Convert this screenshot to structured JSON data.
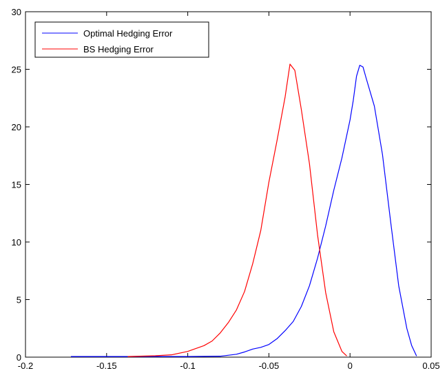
{
  "chart_data": {
    "type": "line",
    "title": "",
    "xlabel": "",
    "ylabel": "",
    "xlim": [
      -0.2,
      0.05
    ],
    "ylim": [
      0,
      30
    ],
    "x_ticks": [
      -0.2,
      -0.15,
      -0.1,
      -0.05,
      0,
      0.05
    ],
    "x_tick_labels": [
      "-0.2",
      "-0.15",
      "-0.1",
      "-0.05",
      "0",
      "0.05"
    ],
    "y_ticks": [
      0,
      5,
      10,
      15,
      20,
      25,
      30
    ],
    "y_tick_labels": [
      "0",
      "5",
      "10",
      "15",
      "20",
      "25",
      "30"
    ],
    "grid": false,
    "legend_position": "top-left",
    "series": [
      {
        "name": "Optimal Hedging Error",
        "color": "#0000ff",
        "points": [
          [
            -0.172,
            0.05
          ],
          [
            -0.14,
            0.05
          ],
          [
            -0.12,
            0.05
          ],
          [
            -0.1,
            0.05
          ],
          [
            -0.08,
            0.08
          ],
          [
            -0.07,
            0.25
          ],
          [
            -0.065,
            0.45
          ],
          [
            -0.06,
            0.7
          ],
          [
            -0.055,
            0.85
          ],
          [
            -0.05,
            1.1
          ],
          [
            -0.045,
            1.6
          ],
          [
            -0.04,
            2.3
          ],
          [
            -0.035,
            3.1
          ],
          [
            -0.03,
            4.4
          ],
          [
            -0.025,
            6.2
          ],
          [
            -0.02,
            8.6
          ],
          [
            -0.015,
            11.4
          ],
          [
            -0.01,
            14.5
          ],
          [
            -0.005,
            17.3
          ],
          [
            0,
            20.6
          ],
          [
            0.002,
            22.3
          ],
          [
            0.004,
            24.4
          ],
          [
            0.006,
            25.35
          ],
          [
            0.008,
            25.2
          ],
          [
            0.01,
            24.2
          ],
          [
            0.015,
            21.8
          ],
          [
            0.02,
            17.6
          ],
          [
            0.025,
            11.8
          ],
          [
            0.03,
            6.2
          ],
          [
            0.035,
            2.5
          ],
          [
            0.038,
            1.0
          ],
          [
            0.041,
            0.1
          ]
        ]
      },
      {
        "name": "BS Hedging Error",
        "color": "#ff0000",
        "points": [
          [
            -0.137,
            0.05
          ],
          [
            -0.12,
            0.12
          ],
          [
            -0.11,
            0.2
          ],
          [
            -0.1,
            0.5
          ],
          [
            -0.09,
            1.0
          ],
          [
            -0.085,
            1.4
          ],
          [
            -0.08,
            2.1
          ],
          [
            -0.075,
            3.0
          ],
          [
            -0.07,
            4.1
          ],
          [
            -0.065,
            5.7
          ],
          [
            -0.06,
            8.1
          ],
          [
            -0.055,
            11.0
          ],
          [
            -0.05,
            15.2
          ],
          [
            -0.045,
            18.8
          ],
          [
            -0.04,
            22.6
          ],
          [
            -0.037,
            25.45
          ],
          [
            -0.034,
            24.9
          ],
          [
            -0.03,
            21.5
          ],
          [
            -0.025,
            16.8
          ],
          [
            -0.02,
            10.6
          ],
          [
            -0.015,
            5.6
          ],
          [
            -0.01,
            2.2
          ],
          [
            -0.005,
            0.5
          ],
          [
            -0.002,
            0.1
          ]
        ]
      }
    ]
  }
}
